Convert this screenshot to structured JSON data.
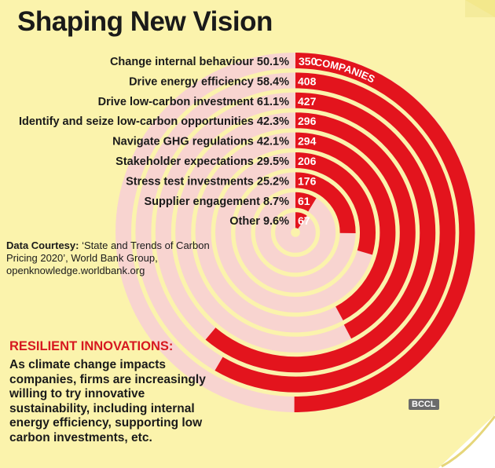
{
  "title": "Shaping New Vision",
  "chart_data": {
    "type": "radial-bar",
    "series_units": [
      "percent of companies",
      "number of companies"
    ],
    "categories": [
      "Change internal behaviour",
      "Drive energy efficiency",
      "Drive low-carbon investment",
      "Identify and seize low-carbon opportunities",
      "Navigate GHG regulations",
      "Stakeholder expectations",
      "Stress test investments",
      "Supplier engagement",
      "Other"
    ],
    "percent_labels": [
      "50.1%",
      "58.4%",
      "61.1%",
      "42.3%",
      "42.1%",
      "29.5%",
      "25.2%",
      "8.7%",
      "9.6%"
    ],
    "percent": [
      50.1,
      58.4,
      61.1,
      42.3,
      42.1,
      29.5,
      25.2,
      8.7,
      9.6
    ],
    "counts": [
      350,
      408,
      427,
      296,
      294,
      206,
      176,
      61,
      67
    ],
    "count_labels": [
      "350",
      "408",
      "427",
      "296",
      "294",
      "206",
      "176",
      "61",
      "67"
    ],
    "first_count_suffix": "COMPANIES",
    "max_percent": 100,
    "colors": {
      "bar": "#e3141d",
      "track": "#f8d4d0",
      "background": "#fbf3ac"
    }
  },
  "source": {
    "label": "Data Courtesy:",
    "text": "‘State and Trends of Carbon Pricing 2020’, World Bank Group, openknowledge.worldbank.org"
  },
  "resilient": {
    "heading": "RESILIENT INNOVATIONS:",
    "body": "As climate change impacts companies, firms are increasingly willing to try innovative sustainability, including internal energy efficiency, supporting low carbon investments, etc."
  },
  "watermark": "BCCL"
}
